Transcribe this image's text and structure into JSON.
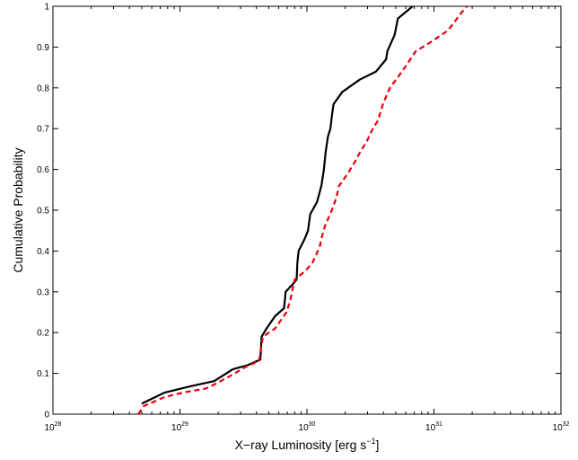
{
  "chart_data": {
    "type": "line",
    "title": "",
    "xlabel": "X−ray Luminosity [erg s",
    "xlabel_superscript": "−1",
    "xlabel_suffix": "]",
    "ylabel": "Cumulative Probability",
    "x_scale": "log",
    "xlim": [
      1e+28,
      1e+32
    ],
    "ylim": [
      0,
      1
    ],
    "grid": false,
    "x_ticks": [
      {
        "value": 1e+28,
        "base": "10",
        "exp": "28"
      },
      {
        "value": 1e+29,
        "base": "10",
        "exp": "29"
      },
      {
        "value": 1e+30,
        "base": "10",
        "exp": "30"
      },
      {
        "value": 1e+31,
        "base": "10",
        "exp": "31"
      },
      {
        "value": 1e+32,
        "base": "10",
        "exp": "32"
      }
    ],
    "y_ticks": [
      "0",
      "0.1",
      "0.2",
      "0.3",
      "0.4",
      "0.5",
      "0.6",
      "0.7",
      "0.8",
      "0.9",
      "1"
    ],
    "series": [
      {
        "color": "#000000",
        "style": "solid",
        "points": [
          [
            5e+28,
            0.026
          ],
          [
            7.6e+28,
            0.053
          ],
          [
            1.2e+29,
            0.068
          ],
          [
            1.86e+29,
            0.081
          ],
          [
            2.6e+29,
            0.11
          ],
          [
            3.4e+29,
            0.12
          ],
          [
            4.3e+29,
            0.134
          ],
          [
            4.4e+29,
            0.19
          ],
          [
            4.8e+29,
            0.21
          ],
          [
            5.6e+29,
            0.24
          ],
          [
            6.6e+29,
            0.26
          ],
          [
            6.8e+29,
            0.3
          ],
          [
            7.8e+29,
            0.32
          ],
          [
            8.3e+29,
            0.33
          ],
          [
            8.4e+29,
            0.37
          ],
          [
            8.6e+29,
            0.4
          ],
          [
            9.6e+29,
            0.43
          ],
          [
            1.02e+30,
            0.45
          ],
          [
            1.06e+30,
            0.49
          ],
          [
            1.2e+30,
            0.52
          ],
          [
            1.3e+30,
            0.56
          ],
          [
            1.36e+30,
            0.6
          ],
          [
            1.4e+30,
            0.64
          ],
          [
            1.46e+30,
            0.68
          ],
          [
            1.53e+30,
            0.7
          ],
          [
            1.57e+30,
            0.73
          ],
          [
            1.62e+30,
            0.76
          ],
          [
            1.9e+30,
            0.79
          ],
          [
            2.6e+30,
            0.82
          ],
          [
            3.5e+30,
            0.84
          ],
          [
            4.2e+30,
            0.87
          ],
          [
            4.3e+30,
            0.89
          ],
          [
            4.9e+30,
            0.93
          ],
          [
            5.2e+30,
            0.97
          ],
          [
            6.8e+30,
            1.0
          ]
        ]
      },
      {
        "color": "#e8000b",
        "style": "dashed",
        "points": [
          [
            4.7e+28,
            0.0
          ],
          [
            5.2e+28,
            0.02
          ],
          [
            7.6e+28,
            0.042
          ],
          [
            1.06e+29,
            0.053
          ],
          [
            1.6e+29,
            0.063
          ],
          [
            1.9e+29,
            0.074
          ],
          [
            2.5e+29,
            0.094
          ],
          [
            3.3e+29,
            0.116
          ],
          [
            4.2e+29,
            0.131
          ],
          [
            4.5e+29,
            0.19
          ],
          [
            5.6e+29,
            0.21
          ],
          [
            6.9e+29,
            0.25
          ],
          [
            7.4e+29,
            0.28
          ],
          [
            8e+29,
            0.33
          ],
          [
            9.6e+29,
            0.35
          ],
          [
            1.1e+30,
            0.37
          ],
          [
            1.26e+30,
            0.41
          ],
          [
            1.3e+30,
            0.43
          ],
          [
            1.38e+30,
            0.46
          ],
          [
            1.57e+30,
            0.5
          ],
          [
            1.7e+30,
            0.53
          ],
          [
            1.79e+30,
            0.56
          ],
          [
            2.1e+30,
            0.59
          ],
          [
            2.4e+30,
            0.62
          ],
          [
            2.6e+30,
            0.64
          ],
          [
            2.97e+30,
            0.67
          ],
          [
            3.3e+30,
            0.7
          ],
          [
            3.63e+30,
            0.72
          ],
          [
            3.96e+30,
            0.76
          ],
          [
            4.5e+30,
            0.8
          ],
          [
            5.3e+30,
            0.83
          ],
          [
            5.9e+30,
            0.85
          ],
          [
            7.2e+30,
            0.89
          ],
          [
            9.2e+30,
            0.91
          ],
          [
            1.28e+31,
            0.94
          ],
          [
            1.44e+31,
            0.96
          ],
          [
            1.6e+31,
            0.98
          ],
          [
            1.82e+31,
            1.0
          ]
        ]
      }
    ]
  }
}
